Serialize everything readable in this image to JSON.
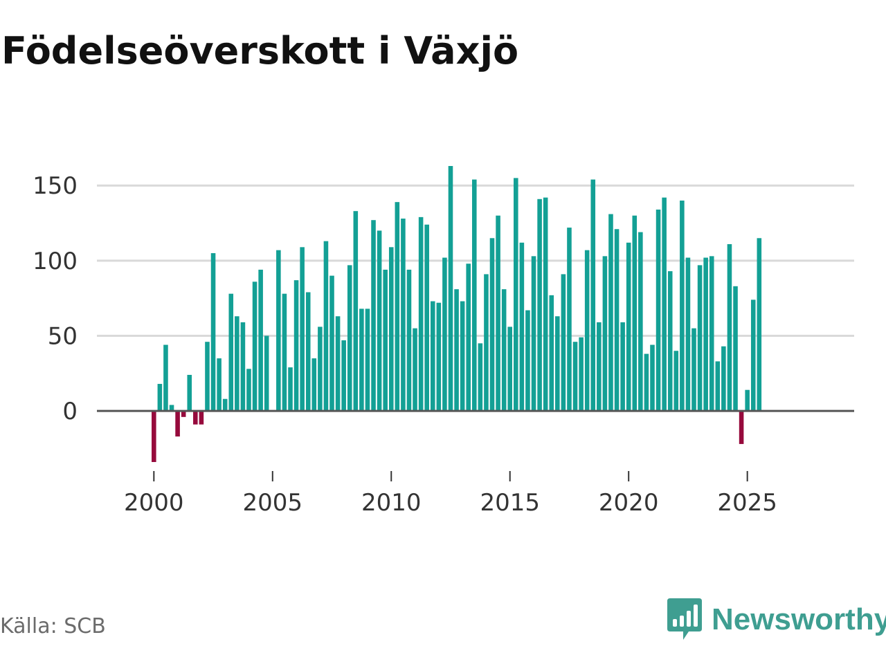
{
  "header": {
    "title": "Födelseöverskott i Växjö"
  },
  "footer": {
    "source": "Källa: SCB",
    "brand": "Newsworthy"
  },
  "colors": {
    "positive": "#13a095",
    "negative": "#960a3c",
    "grid": "#d9d9d9",
    "zero_line": "#555555",
    "brand": "#3f9e91"
  },
  "icons": {
    "brand_logo": "bar-chart-speech-bubble-icon"
  },
  "chart_data": {
    "type": "bar",
    "title": "Födelseöverskott i Växjö",
    "xlabel": "",
    "ylabel": "",
    "frequency": "quarterly",
    "start": {
      "year": 2000,
      "quarter": 1
    },
    "ylim": [
      -34,
      163
    ],
    "xlim": [
      1997.6,
      2029.5
    ],
    "yticks": [
      0,
      50,
      100,
      150
    ],
    "xticks": [
      2000,
      2005,
      2010,
      2015,
      2020,
      2025
    ],
    "grid": true,
    "legend": "none",
    "values": [
      -34,
      18,
      44,
      4,
      -17,
      -4,
      24,
      -9,
      -9,
      46,
      105,
      35,
      8,
      78,
      63,
      59,
      28,
      86,
      94,
      50,
      0,
      107,
      78,
      29,
      87,
      109,
      79,
      35,
      56,
      113,
      90,
      63,
      47,
      97,
      133,
      68,
      68,
      127,
      120,
      94,
      109,
      139,
      128,
      94,
      55,
      129,
      124,
      73,
      72,
      102,
      163,
      81,
      73,
      98,
      154,
      45,
      91,
      115,
      130,
      81,
      56,
      155,
      112,
      67,
      103,
      141,
      142,
      77,
      63,
      91,
      122,
      46,
      49,
      107,
      154,
      59,
      103,
      131,
      121,
      59,
      112,
      130,
      119,
      38,
      44,
      134,
      142,
      93,
      40,
      140,
      102,
      55,
      97,
      102,
      103,
      33,
      43,
      111,
      83,
      -22,
      14,
      74,
      115
    ]
  }
}
